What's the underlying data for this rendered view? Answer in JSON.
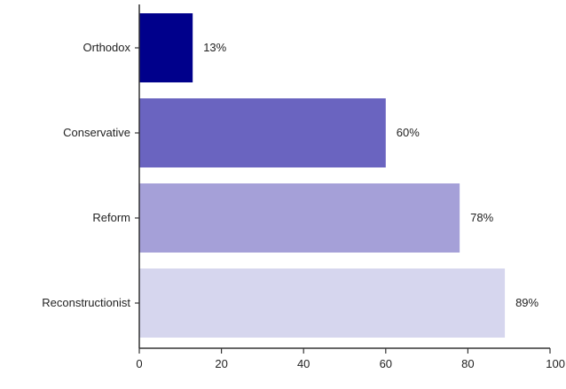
{
  "chart_data": {
    "type": "bar",
    "orientation": "horizontal",
    "categories": [
      "Orthodox",
      "Conservative",
      "Reform",
      "Reconstructionist"
    ],
    "values": [
      13,
      60,
      78,
      89
    ],
    "value_labels": [
      "13%",
      "60%",
      "78%",
      "89%"
    ],
    "bar_colors": [
      "#00008b",
      "#6a64c0",
      "#a5a0d8",
      "#d6d6ee"
    ],
    "xlim": [
      0,
      100
    ],
    "xticks": [
      0,
      20,
      40,
      60,
      80,
      100
    ],
    "xtick_labels": [
      "0",
      "20",
      "40",
      "60",
      "80",
      "100"
    ],
    "grid": false,
    "legend": "none"
  }
}
